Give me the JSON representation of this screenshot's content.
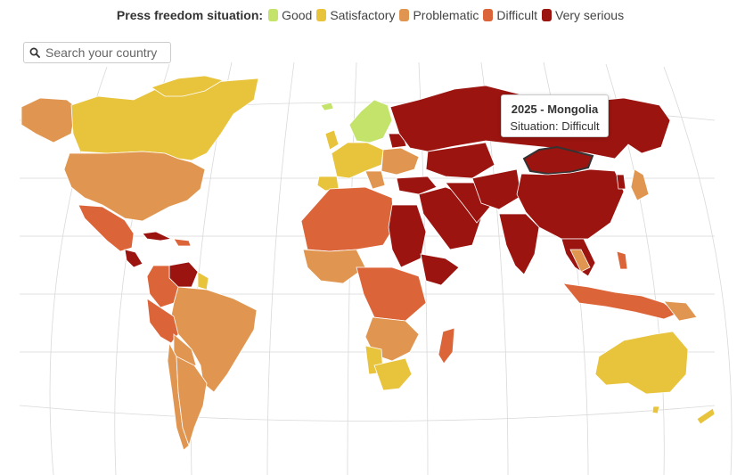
{
  "legend": {
    "title": "Press freedom situation:",
    "items": [
      {
        "label": "Good",
        "color": "#c4e36b"
      },
      {
        "label": "Satisfactory",
        "color": "#e8c33c"
      },
      {
        "label": "Problematic",
        "color": "#e09650"
      },
      {
        "label": "Difficult",
        "color": "#dc6439"
      },
      {
        "label": "Very serious",
        "color": "#9b1410"
      }
    ]
  },
  "search": {
    "placeholder": "Search your country ...",
    "icon": "search-icon"
  },
  "tooltip": {
    "title": "2025 - Mongolia",
    "situation": "Situation: Difficult"
  },
  "map": {
    "highlighted_country": "Mongolia",
    "highlighted_situation": "Difficult"
  }
}
